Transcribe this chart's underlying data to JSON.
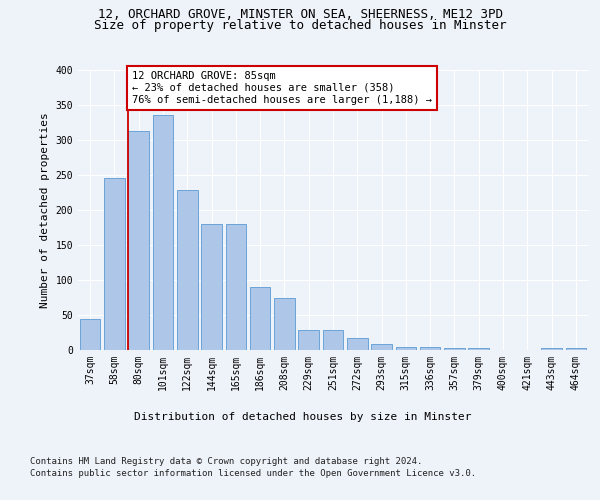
{
  "title_line1": "12, ORCHARD GROVE, MINSTER ON SEA, SHEERNESS, ME12 3PD",
  "title_line2": "Size of property relative to detached houses in Minster",
  "xlabel": "Distribution of detached houses by size in Minster",
  "ylabel": "Number of detached properties",
  "categories": [
    "37sqm",
    "58sqm",
    "80sqm",
    "101sqm",
    "122sqm",
    "144sqm",
    "165sqm",
    "186sqm",
    "208sqm",
    "229sqm",
    "251sqm",
    "272sqm",
    "293sqm",
    "315sqm",
    "336sqm",
    "357sqm",
    "379sqm",
    "400sqm",
    "421sqm",
    "443sqm",
    "464sqm"
  ],
  "values": [
    44,
    245,
    313,
    335,
    229,
    180,
    180,
    90,
    75,
    28,
    28,
    17,
    9,
    4,
    5,
    3,
    3,
    0,
    0,
    3,
    3
  ],
  "bar_color": "#aec6e8",
  "bar_edge_color": "#5b9bd5",
  "vline_x_index": 2,
  "vline_color": "#cc0000",
  "annotation_text": "12 ORCHARD GROVE: 85sqm\n← 23% of detached houses are smaller (358)\n76% of semi-detached houses are larger (1,188) →",
  "annotation_box_color": "#ffffff",
  "annotation_box_edge_color": "#cc0000",
  "ylim": [
    0,
    400
  ],
  "yticks": [
    0,
    50,
    100,
    150,
    200,
    250,
    300,
    350,
    400
  ],
  "footnote_line1": "Contains HM Land Registry data © Crown copyright and database right 2024.",
  "footnote_line2": "Contains public sector information licensed under the Open Government Licence v3.0.",
  "title_fontsize": 9,
  "subtitle_fontsize": 9,
  "axis_label_fontsize": 8,
  "tick_fontsize": 7,
  "annotation_fontsize": 7.5,
  "footnote_fontsize": 6.5,
  "background_color": "#eef2f9",
  "plot_bg_color": "#eef2f9"
}
